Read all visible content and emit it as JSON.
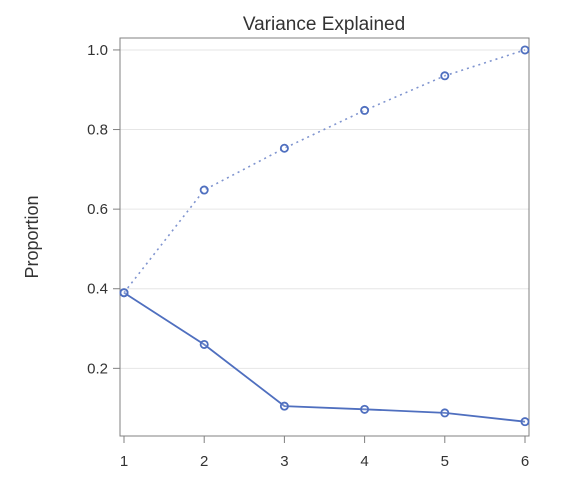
{
  "chart_data": {
    "type": "line",
    "title": "Variance Explained",
    "xlabel": "",
    "ylabel": "Proportion",
    "x": [
      1,
      2,
      3,
      4,
      5,
      6
    ],
    "xlim": [
      0.95,
      6.05
    ],
    "ylim": [
      0.03,
      1.03
    ],
    "x_ticks": [
      "1",
      "2",
      "3",
      "4",
      "5",
      "6"
    ],
    "y_ticks": [
      "0.2",
      "0.4",
      "0.6",
      "0.8",
      "1.0"
    ],
    "grid": "horizontal",
    "series": [
      {
        "line_style": "solid",
        "color": "#4f6fbf",
        "values": [
          0.39,
          0.26,
          0.105,
          0.097,
          0.088,
          0.066
        ]
      },
      {
        "line_style": "dotted",
        "color": "#7f94cf",
        "values": [
          0.39,
          0.648,
          0.753,
          0.848,
          0.935,
          1.0
        ]
      }
    ]
  }
}
